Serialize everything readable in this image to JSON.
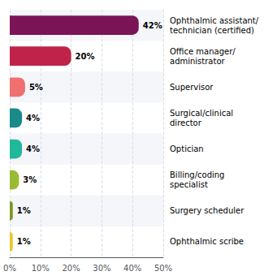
{
  "chart_data": {
    "type": "bar",
    "orientation": "horizontal",
    "categories": [
      "Ophthalmic assistant/\ntechnician (certified)",
      "Office manager/\nadministrator",
      "Supervisor",
      "Surgical/clinical\ndirector",
      "Optician",
      "Billing/coding\nspecialist",
      "Surgery scheduler",
      "Ophthalmic scribe"
    ],
    "values": [
      42,
      20,
      5,
      4,
      4,
      3,
      1,
      1
    ],
    "value_labels": [
      "42%",
      "20%",
      "5%",
      "4%",
      "4%",
      "3%",
      "1%",
      "1%"
    ],
    "colors": [
      "#7b1457",
      "#c0234a",
      "#f07070",
      "#1a8a8a",
      "#20b89a",
      "#99bb33",
      "#7a9a22",
      "#e8c830"
    ],
    "xlim": [
      0,
      50
    ],
    "xticks": [
      {
        "value": 0,
        "label": "0%"
      },
      {
        "value": 10,
        "label": "10%"
      },
      {
        "value": 20,
        "label": "20%"
      },
      {
        "value": 30,
        "label": "30%"
      },
      {
        "value": 40,
        "label": "40%"
      },
      {
        "value": 50,
        "label": "50%"
      }
    ],
    "grid": true,
    "data_labels": true
  }
}
